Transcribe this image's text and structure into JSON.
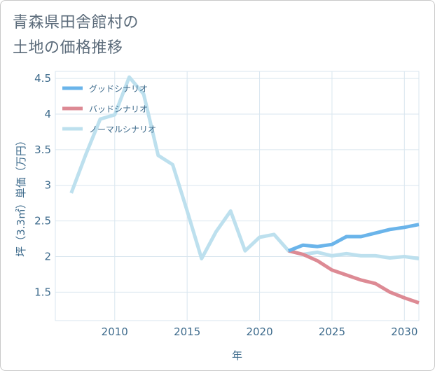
{
  "title_lines": [
    "青森県田舎館村の",
    "土地の価格推移"
  ],
  "chart_data": {
    "type": "line",
    "xlabel": "年",
    "ylabel": "坪（3.3㎡）単価（万円）",
    "xlim": [
      2005.9,
      2031
    ],
    "ylim": [
      1.1,
      4.6
    ],
    "x_ticks": [
      2010,
      2015,
      2020,
      2025,
      2030
    ],
    "y_ticks": [
      1.5,
      2,
      2.5,
      3,
      3.5,
      4,
      4.5
    ],
    "x_tick_labels": [
      "2010",
      "2015",
      "2020",
      "2025",
      "2030"
    ],
    "y_tick_labels": [
      "1.5",
      "2",
      "2.5",
      "3",
      "3.5",
      "4",
      "4.5"
    ],
    "grid": true,
    "legend_position": "top-left",
    "series": [
      {
        "name": "グッドシナリオ",
        "color": "#6ab4ea",
        "x": [
          2022,
          2023,
          2024,
          2025,
          2026,
          2027,
          2028,
          2029,
          2030,
          2031
        ],
        "y": [
          2.08,
          2.16,
          2.14,
          2.17,
          2.28,
          2.28,
          2.33,
          2.38,
          2.41,
          2.45
        ]
      },
      {
        "name": "バッドシナリオ",
        "color": "#dd8a94",
        "x": [
          2022,
          2023,
          2024,
          2025,
          2026,
          2027,
          2028,
          2029,
          2030,
          2031
        ],
        "y": [
          2.08,
          2.03,
          1.94,
          1.81,
          1.74,
          1.67,
          1.62,
          1.5,
          1.42,
          1.35
        ]
      },
      {
        "name": "ノーマルシナリオ",
        "color": "#bde0ee",
        "x": [
          2007,
          2008,
          2009,
          2010,
          2011,
          2012,
          2013,
          2014,
          2015,
          2016,
          2017,
          2018,
          2019,
          2020,
          2021,
          2022,
          2023,
          2024,
          2025,
          2026,
          2027,
          2028,
          2029,
          2030,
          2031
        ],
        "y": [
          2.89,
          3.43,
          3.93,
          3.99,
          4.52,
          4.28,
          3.42,
          3.29,
          2.64,
          1.97,
          2.35,
          2.64,
          2.08,
          2.27,
          2.31,
          2.08,
          2.03,
          2.06,
          2.01,
          2.04,
          2.01,
          2.01,
          1.98,
          2.0,
          1.97
        ]
      }
    ]
  }
}
